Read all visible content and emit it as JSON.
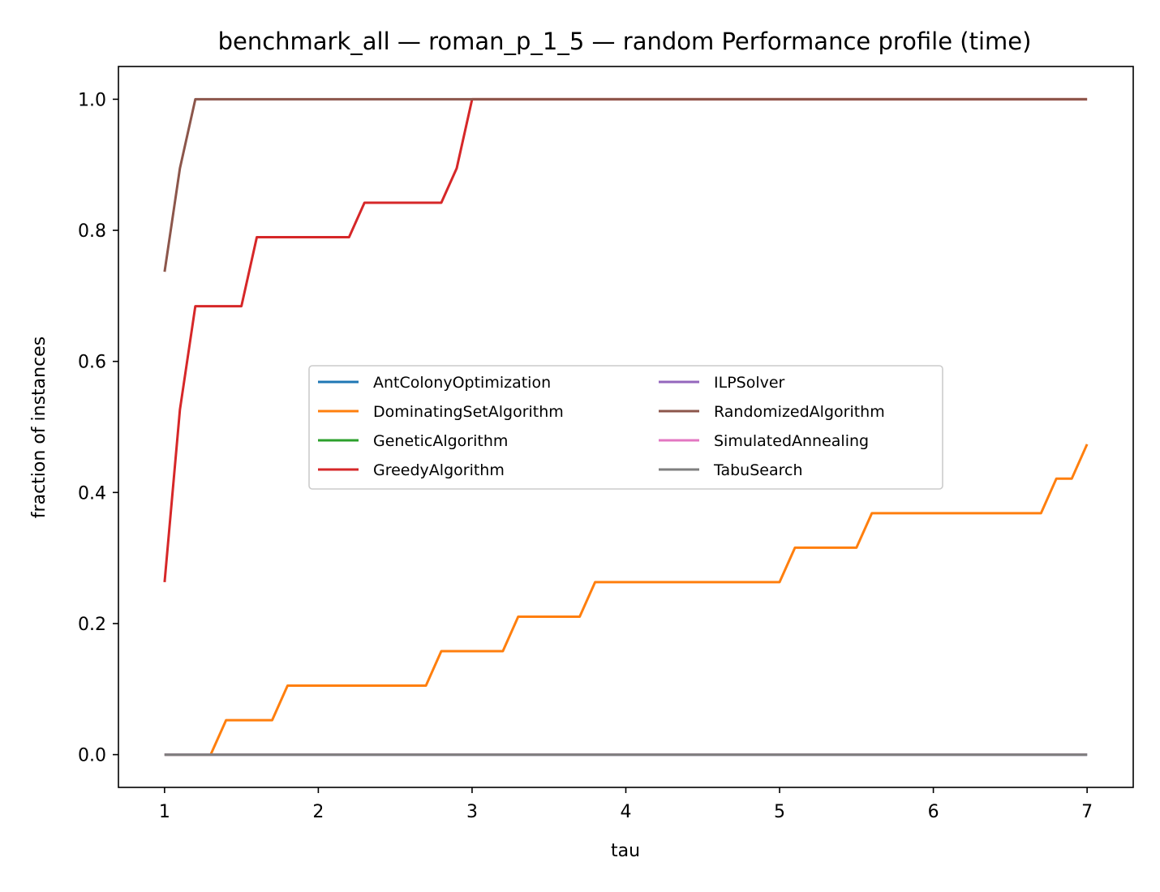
{
  "chart_data": {
    "type": "line",
    "title": "benchmark_all — roman_p_1_5 — random Performance profile (time)",
    "xlabel": "tau",
    "ylabel": "fraction of instances",
    "xlim": [
      0.7,
      7.3
    ],
    "ylim": [
      -0.05,
      1.05
    ],
    "xticks": [
      1,
      2,
      3,
      4,
      5,
      6,
      7
    ],
    "yticks": [
      0.0,
      0.2,
      0.4,
      0.6,
      0.8,
      1.0
    ],
    "xtick_labels": [
      "1",
      "2",
      "3",
      "4",
      "5",
      "6",
      "7"
    ],
    "ytick_labels": [
      "0.0",
      "0.2",
      "0.4",
      "0.6",
      "0.8",
      "1.0"
    ],
    "grid": false,
    "legend_placement": "center",
    "legend_columns": 2,
    "series": [
      {
        "name": "AntColonyOptimization",
        "color": "#1f77b4",
        "points": [
          [
            1.0,
            0.0
          ],
          [
            7.0,
            0.0
          ]
        ]
      },
      {
        "name": "DominatingSetAlgorithm",
        "color": "#ff7f0e",
        "points": [
          [
            1.0,
            0.0
          ],
          [
            1.3,
            0.0
          ],
          [
            1.4,
            0.0526
          ],
          [
            1.7,
            0.0526
          ],
          [
            1.8,
            0.1053
          ],
          [
            2.7,
            0.1053
          ],
          [
            2.8,
            0.1579
          ],
          [
            3.2,
            0.1579
          ],
          [
            3.3,
            0.2105
          ],
          [
            3.7,
            0.2105
          ],
          [
            3.8,
            0.2632
          ],
          [
            5.0,
            0.2632
          ],
          [
            5.1,
            0.3158
          ],
          [
            5.5,
            0.3158
          ],
          [
            5.6,
            0.3684
          ],
          [
            6.7,
            0.3684
          ],
          [
            6.8,
            0.4211
          ],
          [
            6.9,
            0.4211
          ],
          [
            7.0,
            0.4737
          ]
        ]
      },
      {
        "name": "GeneticAlgorithm",
        "color": "#2ca02c",
        "points": [
          [
            1.0,
            0.0
          ],
          [
            7.0,
            0.0
          ]
        ]
      },
      {
        "name": "GreedyAlgorithm",
        "color": "#d62728",
        "points": [
          [
            1.0,
            0.2632
          ],
          [
            1.1,
            0.5263
          ],
          [
            1.2,
            0.6842
          ],
          [
            1.5,
            0.6842
          ],
          [
            1.6,
            0.7895
          ],
          [
            2.2,
            0.7895
          ],
          [
            2.3,
            0.8421
          ],
          [
            2.8,
            0.8421
          ],
          [
            2.9,
            0.8947
          ],
          [
            3.0,
            1.0
          ],
          [
            7.0,
            1.0
          ]
        ]
      },
      {
        "name": "ILPSolver",
        "color": "#9467bd",
        "points": [
          [
            1.0,
            0.0
          ],
          [
            7.0,
            0.0
          ]
        ]
      },
      {
        "name": "RandomizedAlgorithm",
        "color": "#8c564b",
        "points": [
          [
            1.0,
            0.7368
          ],
          [
            1.1,
            0.8947
          ],
          [
            1.2,
            1.0
          ],
          [
            7.0,
            1.0
          ]
        ]
      },
      {
        "name": "SimulatedAnnealing",
        "color": "#e377c2",
        "points": [
          [
            1.0,
            0.0
          ],
          [
            7.0,
            0.0
          ]
        ]
      },
      {
        "name": "TabuSearch",
        "color": "#7f7f7f",
        "points": [
          [
            1.0,
            0.0
          ],
          [
            7.0,
            0.0
          ]
        ]
      }
    ]
  }
}
